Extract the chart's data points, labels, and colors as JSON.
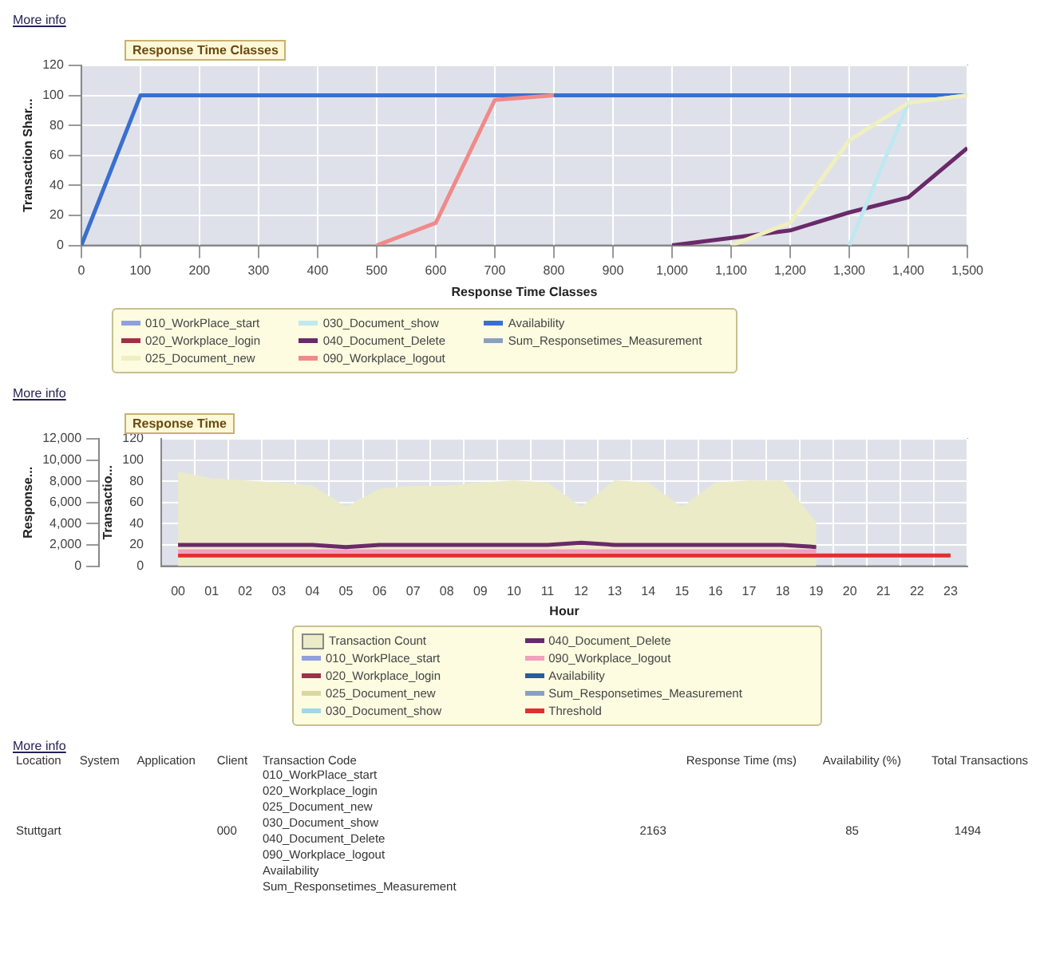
{
  "chart_data": [
    {
      "type": "line",
      "title": "Response Time Classes",
      "xlabel": "Response Time Classes",
      "ylabel": "Transaction Shar...",
      "annotations": [
        "More info"
      ],
      "x": [
        0,
        100,
        200,
        300,
        400,
        500,
        600,
        700,
        800,
        900,
        1000,
        1100,
        1200,
        1300,
        1400,
        1500
      ],
      "xlim": [
        0,
        1500
      ],
      "xticks": [
        0,
        100,
        200,
        300,
        400,
        500,
        600,
        700,
        800,
        900,
        {
          "value": 1000,
          "label": "1,000"
        },
        {
          "value": 1100,
          "label": "1,100"
        },
        {
          "value": 1200,
          "label": "1,200"
        },
        {
          "value": 1300,
          "label": "1,300"
        },
        {
          "value": 1400,
          "label": "1,400"
        },
        {
          "value": 1500,
          "label": "1,500"
        }
      ],
      "ylim": [
        0,
        120
      ],
      "yticks": [
        0,
        20,
        40,
        60,
        80,
        100,
        120
      ],
      "grid": true,
      "legend": "bottom",
      "series": [
        {
          "name": "010_WorkPlace_start",
          "color": "#8f9fe0",
          "values": [
            null,
            null,
            null,
            null,
            null,
            null,
            null,
            null,
            null,
            null,
            null,
            null,
            null,
            null,
            null,
            null
          ]
        },
        {
          "name": "020_Workplace_login",
          "color": "#a0304a",
          "values": [
            null,
            null,
            null,
            null,
            null,
            null,
            null,
            null,
            null,
            null,
            null,
            null,
            null,
            null,
            null,
            null
          ]
        },
        {
          "name": "025_Document_new",
          "color": "#f0efc0",
          "values": [
            null,
            null,
            null,
            null,
            null,
            null,
            null,
            null,
            null,
            null,
            null,
            0,
            15,
            70,
            95,
            100
          ]
        },
        {
          "name": "030_Document_show",
          "color": "#bfe8f0",
          "values": [
            null,
            null,
            null,
            null,
            null,
            null,
            null,
            null,
            null,
            null,
            null,
            null,
            null,
            0,
            95,
            100
          ]
        },
        {
          "name": "040_Document_Delete",
          "color": "#6a2a6a",
          "values": [
            null,
            null,
            null,
            null,
            null,
            null,
            null,
            null,
            null,
            null,
            0,
            5,
            10,
            22,
            32,
            65
          ]
        },
        {
          "name": "090_Workplace_logout",
          "color": "#f08a8a",
          "values": [
            null,
            null,
            null,
            null,
            null,
            0,
            15,
            97,
            100,
            null,
            null,
            null,
            null,
            null,
            null,
            null
          ]
        },
        {
          "name": "Availability",
          "color": "#3a6fd0",
          "values": [
            0,
            100,
            100,
            100,
            100,
            100,
            100,
            100,
            100,
            100,
            100,
            100,
            100,
            100,
            100,
            100
          ]
        },
        {
          "name": "Sum_Responsetimes_Measurement",
          "color": "#8aa0c0",
          "values": [
            null,
            null,
            null,
            null,
            null,
            null,
            null,
            null,
            null,
            null,
            null,
            null,
            null,
            null,
            null,
            null
          ]
        }
      ]
    },
    {
      "type": "line",
      "title": "Response Time",
      "xlabel": "Hour",
      "ylabel": "Response...",
      "y2label": "Transactio...",
      "annotations": [
        "More info"
      ],
      "categories": [
        "00",
        "01",
        "02",
        "03",
        "04",
        "05",
        "06",
        "07",
        "08",
        "09",
        "10",
        "11",
        "12",
        "13",
        "14",
        "15",
        "16",
        "17",
        "18",
        "19",
        "20",
        "21",
        "22",
        "23"
      ],
      "ylim": [
        0,
        12000
      ],
      "yticks": [
        0,
        {
          "value": 2000,
          "label": "2,000"
        },
        {
          "value": 4000,
          "label": "4,000"
        },
        {
          "value": 6000,
          "label": "6,000"
        },
        {
          "value": 8000,
          "label": "8,000"
        },
        {
          "value": 10000,
          "label": "10,000"
        },
        {
          "value": 12000,
          "label": "12,000"
        }
      ],
      "y2lim": [
        0,
        120
      ],
      "y2ticks": [
        0,
        20,
        40,
        60,
        80,
        100,
        120
      ],
      "grid": true,
      "legend": "bottom",
      "series": [
        {
          "name": "Transaction Count",
          "type": "area",
          "axis": "y2",
          "color": "#ecebc8",
          "values": [
            88,
            82,
            80,
            78,
            75,
            55,
            72,
            75,
            75,
            78,
            80,
            78,
            55,
            80,
            78,
            55,
            78,
            80,
            80,
            40,
            null,
            null,
            null,
            null
          ]
        },
        {
          "name": "010_WorkPlace_start",
          "color": "#8f9fe0",
          "values": [
            null,
            null,
            null,
            null,
            null,
            null,
            null,
            null,
            null,
            null,
            null,
            null,
            null,
            null,
            null,
            null,
            null,
            null,
            null,
            null,
            null,
            null,
            null,
            null
          ]
        },
        {
          "name": "020_Workplace_login",
          "color": "#a0304a",
          "values": [
            null,
            null,
            null,
            null,
            null,
            null,
            null,
            null,
            null,
            null,
            null,
            null,
            null,
            null,
            null,
            null,
            null,
            null,
            null,
            null,
            null,
            null,
            null,
            null
          ]
        },
        {
          "name": "025_Document_new",
          "color": "#d8d8a0",
          "values": [
            null,
            null,
            null,
            null,
            null,
            null,
            null,
            null,
            null,
            null,
            null,
            null,
            null,
            null,
            null,
            null,
            null,
            null,
            null,
            null,
            null,
            null,
            null,
            null
          ]
        },
        {
          "name": "030_Document_show",
          "color": "#9fd8e8",
          "values": [
            null,
            null,
            null,
            null,
            null,
            null,
            null,
            null,
            null,
            null,
            null,
            null,
            null,
            null,
            null,
            null,
            null,
            null,
            null,
            null,
            null,
            null,
            null,
            null
          ]
        },
        {
          "name": "040_Document_Delete",
          "color": "#6a2a6a",
          "values": [
            2000,
            2000,
            2000,
            2000,
            2000,
            1800,
            2000,
            2000,
            2000,
            2000,
            2000,
            2000,
            2200,
            2000,
            2000,
            2000,
            2000,
            2000,
            2000,
            1800,
            null,
            null,
            null,
            null
          ]
        },
        {
          "name": "090_Workplace_logout",
          "color": "#f0a0c0",
          "values": [
            1400,
            1400,
            1400,
            1400,
            1400,
            1400,
            1400,
            1400,
            1400,
            1400,
            1400,
            1400,
            1400,
            1400,
            1400,
            1400,
            1400,
            1400,
            1400,
            1400,
            null,
            null,
            null,
            null
          ]
        },
        {
          "name": "Availability",
          "color": "#2a5aa0",
          "values": [
            null,
            null,
            null,
            null,
            null,
            null,
            null,
            null,
            null,
            null,
            null,
            null,
            null,
            null,
            null,
            null,
            null,
            null,
            null,
            null,
            null,
            null,
            null,
            null
          ]
        },
        {
          "name": "Sum_Responsetimes_Measurement",
          "color": "#8aa0c0",
          "values": [
            null,
            null,
            null,
            null,
            null,
            null,
            null,
            null,
            null,
            null,
            null,
            null,
            null,
            null,
            null,
            null,
            null,
            null,
            null,
            null,
            null,
            null,
            null,
            null
          ]
        },
        {
          "name": "Threshold",
          "color": "#e03030",
          "values": [
            1000,
            1000,
            1000,
            1000,
            1000,
            1000,
            1000,
            1000,
            1000,
            1000,
            1000,
            1000,
            1000,
            1000,
            1000,
            1000,
            1000,
            1000,
            1000,
            1000,
            1000,
            1000,
            1000,
            1000
          ]
        }
      ]
    },
    {
      "type": "other",
      "annotations": [
        "More info",
        "Location",
        "System",
        "Application",
        "Client",
        "Transaction Code",
        "Response Time (ms)",
        "Availability (%)",
        "Total Transactions",
        "Stuttgart",
        null,
        null,
        "000",
        "010_WorkPlace_start\n020_Workplace_login\n025_Document_new\n030_Document_show\n040_Document_Delete\n090_Workplace_logout\nAvailability\nSum_Responsetimes_Measurement",
        "2163",
        "85",
        "1494"
      ]
    }
  ]
}
